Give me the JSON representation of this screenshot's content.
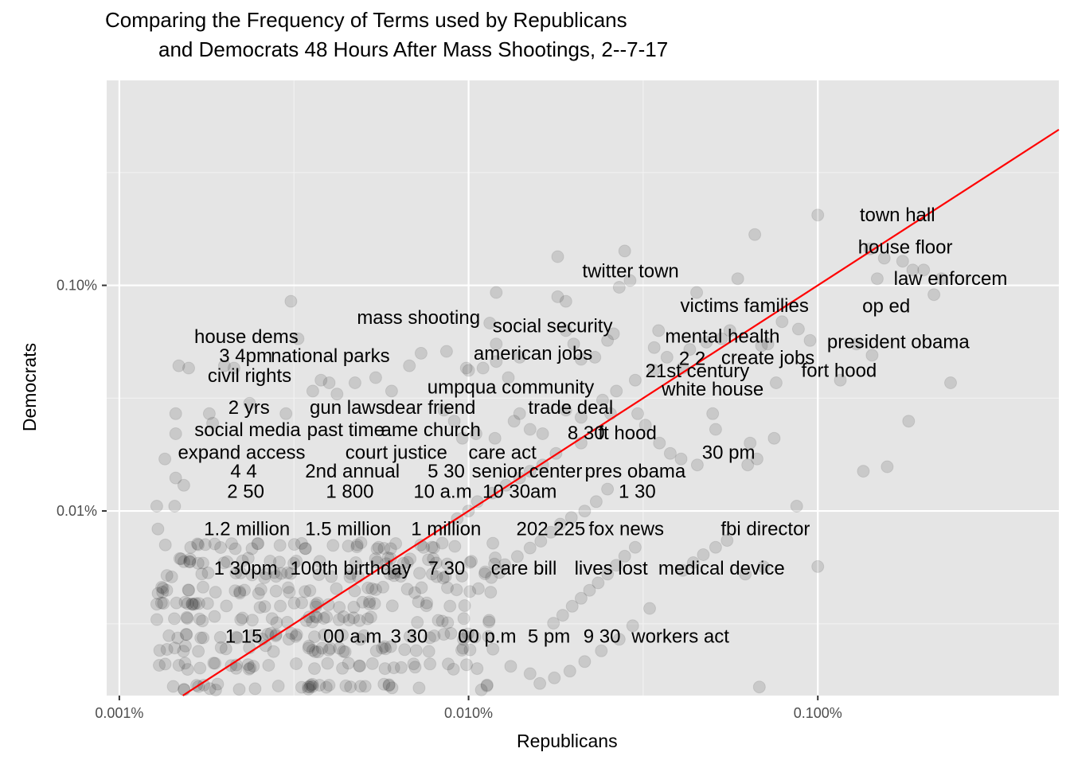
{
  "chart_data": {
    "type": "scatter",
    "title_lines": [
      "Comparing the Frequency of Terms used by Republicans",
      "and Democrats 48 Hours After Mass Shootings, 2--7-17"
    ],
    "xlabel": "Republicans",
    "ylabel": "Democrats",
    "scale": "log10",
    "xlim": [
      9.2e-06,
      0.0049
    ],
    "ylim": [
      1.52e-05,
      0.0081
    ],
    "x_ticks": [
      {
        "value": 1e-05,
        "label": "0.001%"
      },
      {
        "value": 0.0001,
        "label": "0.010%"
      },
      {
        "value": 0.001,
        "label": "0.100%"
      }
    ],
    "y_ticks": [
      {
        "value": 0.0001,
        "label": "0.01%"
      },
      {
        "value": 0.001,
        "label": "0.10%"
      }
    ],
    "reference_line": {
      "slope": 1,
      "intercept": 0,
      "color": "#ff0000"
    },
    "point_color": "#000000",
    "point_alpha": 0.12,
    "grid": true,
    "panel_background": "#e5e5e5",
    "labels": [
      {
        "text": "town hall",
        "x": 0.00169,
        "y": 0.00205
      },
      {
        "text": "house floor",
        "x": 0.00178,
        "y": 0.00148
      },
      {
        "text": "law enforcem",
        "x": 0.0024,
        "y": 0.00107
      },
      {
        "text": "op ed",
        "x": 0.00157,
        "y": 0.00081
      },
      {
        "text": "president obama",
        "x": 0.0017,
        "y": 0.000562
      },
      {
        "text": "fort hood",
        "x": 0.00115,
        "y": 0.00042
      },
      {
        "text": "twitter town",
        "x": 0.000291,
        "y": 0.00116
      },
      {
        "text": "victims families",
        "x": 0.000617,
        "y": 0.000813
      },
      {
        "text": "mental health",
        "x": 0.000533,
        "y": 0.000596
      },
      {
        "text": "2 2",
        "x": 0.000437,
        "y": 0.000474
      },
      {
        "text": "create jobs",
        "x": 0.00072,
        "y": 0.000477
      },
      {
        "text": "21st century",
        "x": 0.000452,
        "y": 0.000417
      },
      {
        "text": "white house",
        "x": 0.0005,
        "y": 0.000346
      },
      {
        "text": "30 pm",
        "x": 0.000555,
        "y": 0.000182
      },
      {
        "text": "pres obama",
        "x": 0.0003,
        "y": 0.00015
      },
      {
        "text": "1 30",
        "x": 0.000304,
        "y": 0.000122
      },
      {
        "text": "fox news",
        "x": 0.000283,
        "y": 8.35e-05
      },
      {
        "text": "fbi director",
        "x": 0.000708,
        "y": 8.35e-05
      },
      {
        "text": "medical device",
        "x": 0.00053,
        "y": 5.57e-05
      },
      {
        "text": "lives lost",
        "x": 0.000256,
        "y": 5.57e-05
      },
      {
        "text": "workers act",
        "x": 0.000404,
        "y": 2.78e-05
      },
      {
        "text": "9 30",
        "x": 0.000241,
        "y": 2.78e-05
      },
      {
        "text": "mass shooting",
        "x": 7.19e-05,
        "y": 0.000719
      },
      {
        "text": "social security",
        "x": 0.000174,
        "y": 0.00066
      },
      {
        "text": "american jobs",
        "x": 0.000153,
        "y": 0.000499
      },
      {
        "text": "umpqua community",
        "x": 0.000132,
        "y": 0.000354
      },
      {
        "text": "trade deal",
        "x": 0.000196,
        "y": 0.000288
      },
      {
        "text": "8 30",
        "x": 0.000217,
        "y": 0.000222
      },
      {
        "text": "ft hood",
        "x": 0.000285,
        "y": 0.000222
      },
      {
        "text": "senior center",
        "x": 0.000147,
        "y": 0.00015
      },
      {
        "text": "care act",
        "x": 0.000125,
        "y": 0.000182
      },
      {
        "text": "10 30am",
        "x": 0.00014,
        "y": 0.000122
      },
      {
        "text": "202 225",
        "x": 0.000172,
        "y": 8.35e-05
      },
      {
        "text": "care bill",
        "x": 0.000144,
        "y": 5.57e-05
      },
      {
        "text": "5 pm",
        "x": 0.00017,
        "y": 2.78e-05
      },
      {
        "text": "00 p.m",
        "x": 0.000113,
        "y": 2.78e-05
      },
      {
        "text": "house dems",
        "x": 2.31e-05,
        "y": 0.000593
      },
      {
        "text": "3 4pm",
        "x": 2.3e-05,
        "y": 0.000488
      },
      {
        "text": "national parks",
        "x": 4.02e-05,
        "y": 0.000488
      },
      {
        "text": "civil rights",
        "x": 2.36e-05,
        "y": 0.000398
      },
      {
        "text": "2 yrs",
        "x": 2.35e-05,
        "y": 0.000288
      },
      {
        "text": "gun laws",
        "x": 4.5e-05,
        "y": 0.000288
      },
      {
        "text": "dear friend",
        "x": 7.75e-05,
        "y": 0.000288
      },
      {
        "text": "social media",
        "x": 2.33e-05,
        "y": 0.000229
      },
      {
        "text": "past time",
        "x": 4.45e-05,
        "y": 0.000229
      },
      {
        "text": "ame church",
        "x": 7.8e-05,
        "y": 0.000229
      },
      {
        "text": "expand access",
        "x": 2.24e-05,
        "y": 0.000182
      },
      {
        "text": "court justice",
        "x": 6.21e-05,
        "y": 0.000182
      },
      {
        "text": "4 4",
        "x": 2.27e-05,
        "y": 0.00015
      },
      {
        "text": "2nd annual",
        "x": 4.65e-05,
        "y": 0.00015
      },
      {
        "text": "5 30",
        "x": 8.63e-05,
        "y": 0.00015
      },
      {
        "text": "2 50",
        "x": 2.3e-05,
        "y": 0.000122
      },
      {
        "text": "1 800",
        "x": 4.57e-05,
        "y": 0.000122
      },
      {
        "text": "10 a.m",
        "x": 8.43e-05,
        "y": 0.000122
      },
      {
        "text": "1.2 million",
        "x": 2.32e-05,
        "y": 8.35e-05
      },
      {
        "text": "1.5 million",
        "x": 4.52e-05,
        "y": 8.35e-05
      },
      {
        "text": "1 million",
        "x": 8.62e-05,
        "y": 8.35e-05
      },
      {
        "text": "1 30pm",
        "x": 2.3e-05,
        "y": 5.57e-05
      },
      {
        "text": "100th birthday",
        "x": 4.6e-05,
        "y": 5.57e-05
      },
      {
        "text": "7 30",
        "x": 8.65e-05,
        "y": 5.57e-05
      },
      {
        "text": "1 15",
        "x": 2.27e-05,
        "y": 2.78e-05
      },
      {
        "text": "00 a.m",
        "x": 4.65e-05,
        "y": 2.78e-05
      },
      {
        "text": "3 30",
        "x": 6.76e-05,
        "y": 2.78e-05
      }
    ],
    "points": [
      [
        0.00226,
        0.00107
      ],
      [
        0.00215,
        0.00091
      ],
      [
        0.00175,
        0.00128
      ],
      [
        0.00155,
        0.00132
      ],
      [
        0.00148,
        0.00107
      ],
      [
        0.00141,
        0.00145
      ],
      [
        0.00201,
        0.00117
      ],
      [
        0.00187,
        0.00117
      ],
      [
        0.00129,
        0.00055
      ],
      [
        0.00143,
        0.00049
      ],
      [
        0.00116,
        0.00038
      ],
      [
        0.0024,
        0.00037
      ],
      [
        0.00182,
        0.00025
      ],
      [
        0.00135,
        0.00015
      ],
      [
        0.00158,
        0.000157
      ],
      [
        0.001,
        0.00205
      ],
      [
        0.00095,
        0.00057
      ],
      [
        0.00079,
        0.00069
      ],
      [
        0.00088,
        0.00064
      ],
      [
        0.00066,
        0.00168
      ],
      [
        0.00056,
        0.00063
      ],
      [
        0.00053,
        0.00058
      ],
      [
        0.00059,
        0.00107
      ],
      [
        0.00072,
        0.00055
      ],
      [
        0.00069,
        0.00054
      ],
      [
        0.00076,
        0.00037
      ],
      [
        0.00075,
        0.00021
      ],
      [
        0.00064,
        0.0002
      ],
      [
        0.00051,
        0.00023
      ],
      [
        0.00067,
        0.00017
      ],
      [
        0.00063,
        0.00016
      ],
      [
        0.0005,
        0.00027
      ],
      [
        0.00048,
        0.00056
      ],
      [
        0.00043,
        0.00052
      ],
      [
        0.00041,
        0.00043
      ],
      [
        0.00045,
        0.00093
      ],
      [
        0.00035,
        0.00063
      ],
      [
        0.00034,
        0.00053
      ],
      [
        0.00034,
        0.00042
      ],
      [
        0.00037,
        0.00048
      ],
      [
        0.0003,
        0.00038
      ],
      [
        0.00029,
        0.00105
      ],
      [
        0.00028,
        0.00142
      ],
      [
        0.00027,
        0.00098
      ],
      [
        0.00026,
        0.00061
      ],
      [
        0.00025,
        0.00057
      ],
      [
        0.00023,
        0.00048
      ],
      [
        0.00021,
        0.00047
      ],
      [
        0.0002,
        0.00055
      ],
      [
        0.00019,
        0.00063
      ],
      [
        0.00018,
        0.00089
      ],
      [
        0.00019,
        0.00085
      ],
      [
        0.00018,
        0.00134
      ],
      [
        0.00014,
        0.00048
      ],
      [
        0.00012,
        0.00093
      ],
      [
        0.000115,
        0.00068
      ],
      [
        0.00012,
        0.00055
      ],
      [
        0.00012,
        0.00046
      ],
      [
        0.00013,
        0.00039
      ],
      [
        0.00011,
        0.00043
      ],
      [
        0.0001,
        0.00042
      ],
      [
        9.85e-05,
        0.00043
      ],
      [
        8.65e-05,
        0.00051
      ],
      [
        7.31e-05,
        0.0005
      ],
      [
        6.77e-05,
        0.00044
      ],
      [
        6.02e-05,
        0.00034
      ],
      [
        5.42e-05,
        0.00039
      ],
      [
        4.73e-05,
        0.00037
      ],
      [
        3.99e-05,
        0.00037
      ],
      [
        4.2e-05,
        0.00033
      ],
      [
        3.78e-05,
        0.00038
      ],
      [
        3.58e-05,
        0.00034
      ],
      [
        3.25e-05,
        0.00058
      ],
      [
        3.1e-05,
        0.00085
      ],
      [
        3e-05,
        0.00027
      ],
      [
        2.36e-05,
        0.0003
      ],
      [
        2.13e-05,
        0.00043
      ],
      [
        2e-05,
        0.00044
      ],
      [
        1.81e-05,
        0.00027
      ],
      [
        1.85e-05,
        0.000245
      ],
      [
        1.48e-05,
        0.00044
      ],
      [
        1.58e-05,
        0.00043
      ],
      [
        1.45e-05,
        0.00027
      ],
      [
        1.45e-05,
        0.00022
      ],
      [
        1.35e-05,
        0.00017
      ],
      [
        1.45e-05,
        0.00014
      ],
      [
        1.53e-05,
        0.00013
      ],
      [
        1.44e-05,
        0.000105
      ],
      [
        1.28e-05,
        0.000105
      ],
      [
        1.29e-05,
        8.32e-05
      ],
      [
        0.000105,
        0.00022
      ],
      [
        0.000119,
        0.00021
      ],
      [
        9.1e-05,
        0.00025
      ],
      [
        8.5e-05,
        0.00028
      ],
      [
        9.6e-05,
        0.00021
      ],
      [
        0.00014,
        0.00027
      ],
      [
        0.000135,
        0.00025
      ],
      [
        0.00015,
        0.00023
      ],
      [
        0.000163,
        0.00022
      ],
      [
        0.00019,
        0.00028
      ],
      [
        0.00021,
        0.00026
      ],
      [
        0.000242,
        0.00031
      ],
      [
        0.000255,
        0.00027
      ],
      [
        0.000265,
        0.00034
      ],
      [
        0.000305,
        0.00027
      ],
      [
        0.000321,
        0.00024
      ],
      [
        0.000352,
        0.0002
      ],
      [
        0.000378,
        0.00018
      ],
      [
        0.000406,
        0.00017
      ],
      [
        0.000452,
        0.00016
      ],
      [
        0.00021,
        0.0002
      ],
      [
        0.000178,
        0.00018
      ],
      [
        0.000163,
        0.00016
      ],
      [
        0.00015,
        0.00015
      ],
      [
        0.00014,
        0.00014
      ],
      [
        0.000128,
        0.00013
      ],
      [
        0.000117,
        0.00012
      ],
      [
        0.000106,
        0.00011
      ],
      [
        9.99e-05,
        0.0001
      ],
      [
        9.28e-05,
        9.25e-05
      ],
      [
        0.00025,
        0.000125
      ],
      [
        0.000232,
        0.00011
      ],
      [
        0.000215,
        0.0001
      ],
      [
        0.000197,
        9.35e-05
      ],
      [
        0.000183,
        8.75e-05
      ],
      [
        0.000172,
        8.05e-05
      ],
      [
        0.000161,
        7.35e-05
      ],
      [
        0.00015,
        6.85e-05
      ],
      [
        0.000138,
        6.28e-05
      ],
      [
        0.000127,
        5.78e-05
      ],
      [
        0.0003,
        6.9e-05
      ],
      [
        0.00028,
        6.3e-05
      ],
      [
        0.000265,
        5.75e-05
      ],
      [
        0.00025,
        5.25e-05
      ],
      [
        0.000235,
        4.8e-05
      ],
      [
        0.000222,
        4.45e-05
      ],
      [
        0.00021,
        4.1e-05
      ],
      [
        0.000198,
        3.78e-05
      ],
      [
        0.000186,
        3.45e-05
      ],
      [
        0.000175,
        3.18e-05
      ],
      [
        0.00055,
        7.4e-05
      ],
      [
        0.00051,
        6.9e-05
      ],
      [
        0.00047,
        6.4e-05
      ],
      [
        0.00044,
        5.9e-05
      ],
      [
        0.00041,
        5.45e-05
      ],
      [
        0.00062,
        5.25e-05
      ],
      [
        0.0007,
        5.65e-05
      ],
      [
        0.00087,
        0.000105
      ],
      [
        0.001,
        5.67e-05
      ],
      [
        0.00068,
        1.66e-05
      ],
      [
        0.00033,
        3.7e-05
      ],
      [
        0.000295,
        3.1e-05
      ],
      [
        0.00027,
        2.7e-05
      ],
      [
        0.00024,
        2.4e-05
      ],
      [
        0.000215,
        2.15e-05
      ],
      [
        0.000195,
        1.95e-05
      ],
      [
        0.000176,
        1.82e-05
      ],
      [
        0.00016,
        1.72e-05
      ],
      [
        0.00015,
        1.9e-05
      ],
      [
        0.000132,
        2.05e-05
      ]
    ]
  }
}
